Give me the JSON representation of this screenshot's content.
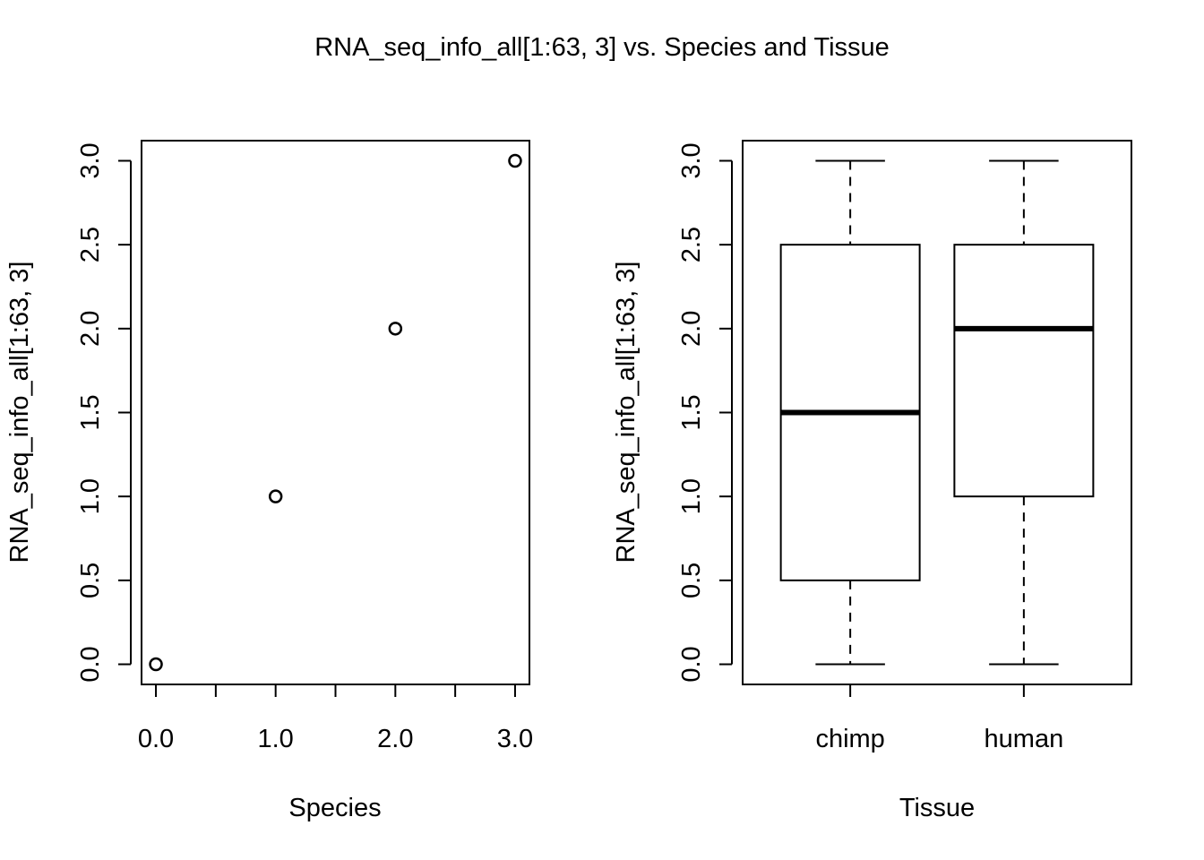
{
  "title": "RNA_seq_info_all[1:63, 3] vs. Species and Tissue",
  "chart_data": [
    {
      "type": "scatter",
      "xlabel": "Species",
      "ylabel": "RNA_seq_info_all[1:63, 3]",
      "xlim": [
        -0.12,
        3.12
      ],
      "ylim": [
        -0.12,
        3.12
      ],
      "xticks": [
        0,
        0.5,
        1,
        1.5,
        2,
        2.5,
        3
      ],
      "xtick_labels": [
        "0.0",
        "",
        "1.0",
        "",
        "2.0",
        "",
        "3.0"
      ],
      "yticks": [
        0,
        0.5,
        1,
        1.5,
        2,
        2.5,
        3
      ],
      "ytick_labels": [
        "0.0",
        "0.5",
        "1.0",
        "1.5",
        "2.0",
        "2.5",
        "3.0"
      ],
      "points": [
        {
          "x": 0,
          "y": 0
        },
        {
          "x": 1,
          "y": 1
        },
        {
          "x": 2,
          "y": 2
        },
        {
          "x": 3,
          "y": 3
        }
      ]
    },
    {
      "type": "box",
      "xlabel": "Tissue",
      "ylabel": "RNA_seq_info_all[1:63, 3]",
      "ylim": [
        -0.12,
        3.12
      ],
      "yticks": [
        0,
        0.5,
        1,
        1.5,
        2,
        2.5,
        3
      ],
      "ytick_labels": [
        "0.0",
        "0.5",
        "1.0",
        "1.5",
        "2.0",
        "2.5",
        "3.0"
      ],
      "categories": [
        "chimp",
        "human"
      ],
      "boxes": [
        {
          "label": "chimp",
          "min": 0,
          "q1": 0.5,
          "median": 1.5,
          "q3": 2.5,
          "max": 3
        },
        {
          "label": "human",
          "min": 0,
          "q1": 1.0,
          "median": 2.0,
          "q3": 2.5,
          "max": 3
        }
      ]
    }
  ]
}
